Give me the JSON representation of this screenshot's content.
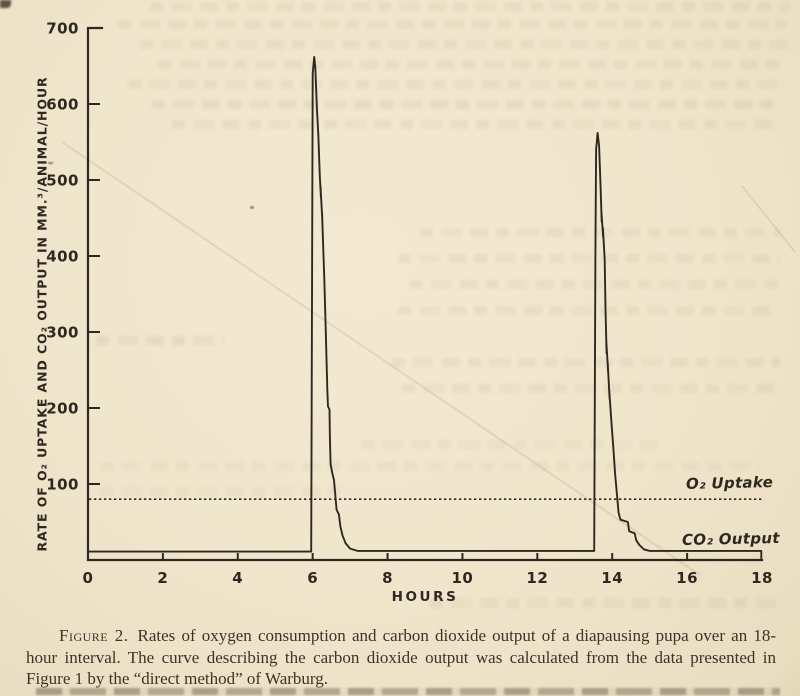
{
  "page": {
    "background_color": "#f0e5cb",
    "ink_color": "#2e2920"
  },
  "caption": {
    "label": "Figure 2.",
    "text": "Rates of oxygen consumption and carbon dioxide output of a diapausing pupa over an 18-hour interval. The curve describing the carbon dioxide output was calculated from the data presented in Figure 1 by the “direct method” of Warburg."
  },
  "chart_data": {
    "type": "line",
    "title": "",
    "xlabel": "HOURS",
    "ylabel": "RATE OF O₂ UPTAKE AND CO₂ OUTPUT IN MM.³/ANIMAL/HOUR",
    "xlim": [
      0,
      18
    ],
    "ylim": [
      0,
      700
    ],
    "x_ticks": [
      0,
      2,
      4,
      6,
      8,
      10,
      12,
      14,
      16,
      18
    ],
    "y_ticks": [
      100,
      200,
      300,
      400,
      500,
      600,
      700
    ],
    "grid": false,
    "legend_position": "labels-at-right-of-plot",
    "series": [
      {
        "name": "O₂ Uptake",
        "style": "dotted-horizontal-line",
        "value": 80
      },
      {
        "name": "CO₂ Output",
        "style": "solid-line",
        "points": [
          [
            0.0,
            11
          ],
          [
            5.96,
            11
          ],
          [
            5.98,
            300
          ],
          [
            6.0,
            640
          ],
          [
            6.04,
            662
          ],
          [
            6.07,
            648
          ],
          [
            6.12,
            585
          ],
          [
            6.11,
            597
          ],
          [
            6.15,
            560
          ],
          [
            6.19,
            505
          ],
          [
            6.22,
            478
          ],
          [
            6.21,
            492
          ],
          [
            6.26,
            445
          ],
          [
            6.25,
            458
          ],
          [
            6.31,
            370
          ],
          [
            6.35,
            300
          ],
          [
            6.39,
            225
          ],
          [
            6.41,
            202
          ],
          [
            6.45,
            198
          ],
          [
            6.46,
            160
          ],
          [
            6.48,
            126
          ],
          [
            6.53,
            113
          ],
          [
            6.57,
            105
          ],
          [
            6.6,
            88
          ],
          [
            6.64,
            66
          ],
          [
            6.7,
            60
          ],
          [
            6.74,
            44
          ],
          [
            6.8,
            32
          ],
          [
            6.88,
            22
          ],
          [
            7.0,
            15
          ],
          [
            7.2,
            12
          ],
          [
            13.52,
            12
          ],
          [
            13.55,
            400
          ],
          [
            13.57,
            540
          ],
          [
            13.61,
            562
          ],
          [
            13.65,
            545
          ],
          [
            13.69,
            490
          ],
          [
            13.72,
            445
          ],
          [
            13.71,
            458
          ],
          [
            13.76,
            425
          ],
          [
            13.75,
            437
          ],
          [
            13.8,
            395
          ],
          [
            13.82,
            330
          ],
          [
            13.85,
            272
          ],
          [
            13.84,
            290
          ],
          [
            13.89,
            248
          ],
          [
            13.88,
            260
          ],
          [
            13.93,
            212
          ],
          [
            13.92,
            224
          ],
          [
            13.98,
            180
          ],
          [
            14.03,
            148
          ],
          [
            14.08,
            112
          ],
          [
            14.13,
            84
          ],
          [
            14.17,
            62
          ],
          [
            14.22,
            53
          ],
          [
            14.42,
            50
          ],
          [
            14.45,
            38
          ],
          [
            14.6,
            35
          ],
          [
            14.64,
            26
          ],
          [
            14.72,
            20
          ],
          [
            14.85,
            14
          ],
          [
            15.0,
            12
          ],
          [
            17.98,
            12
          ],
          [
            17.98,
            2
          ]
        ]
      }
    ]
  }
}
